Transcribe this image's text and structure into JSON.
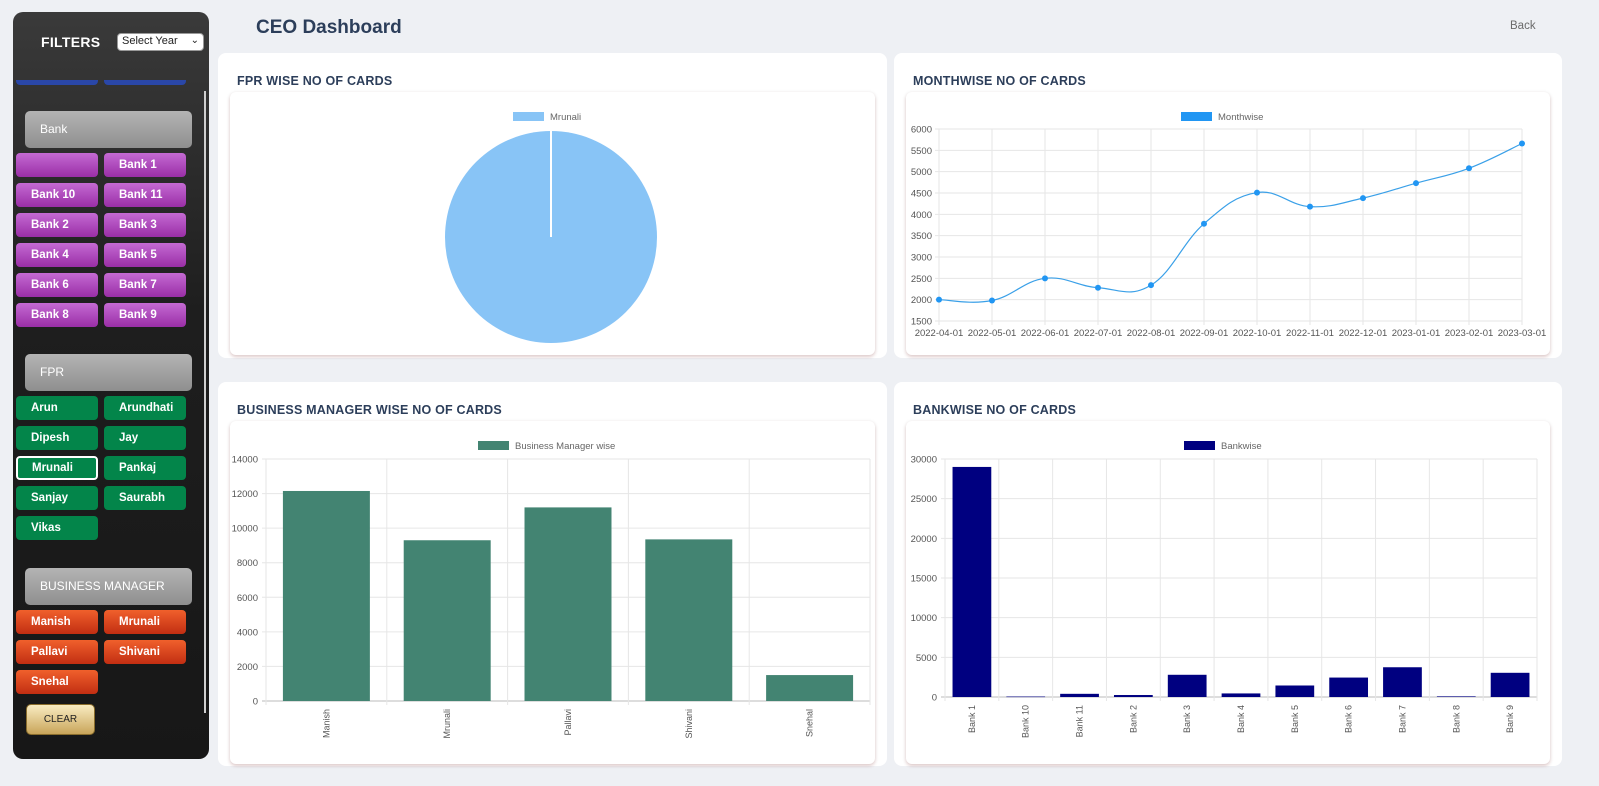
{
  "sidebar": {
    "title": "FILTERS",
    "year_select": {
      "value": "Select Year"
    },
    "bank_section": {
      "label": "Bank",
      "items": [
        {
          "label": ""
        },
        {
          "label": "Bank 1"
        },
        {
          "label": "Bank 10"
        },
        {
          "label": "Bank 11"
        },
        {
          "label": "Bank 2"
        },
        {
          "label": "Bank 3"
        },
        {
          "label": "Bank 4"
        },
        {
          "label": "Bank 5"
        },
        {
          "label": "Bank 6"
        },
        {
          "label": "Bank 7"
        },
        {
          "label": "Bank 8"
        },
        {
          "label": "Bank 9"
        }
      ]
    },
    "fpr_section": {
      "label": "FPR",
      "items": [
        {
          "label": "Arun"
        },
        {
          "label": "Arundhati"
        },
        {
          "label": "Dipesh"
        },
        {
          "label": "Jay"
        },
        {
          "label": "Mrunali",
          "selected": true
        },
        {
          "label": "Pankaj"
        },
        {
          "label": "Sanjay"
        },
        {
          "label": "Saurabh"
        },
        {
          "label": "Vikas"
        }
      ]
    },
    "bm_section": {
      "label": "BUSINESS MANAGER",
      "items": [
        {
          "label": "Manish"
        },
        {
          "label": "Mrunali"
        },
        {
          "label": "Pallavi"
        },
        {
          "label": "Shivani"
        },
        {
          "label": "Snehal"
        }
      ]
    },
    "clear_label": "CLEAR"
  },
  "header": {
    "title": "CEO Dashboard",
    "back_label": "Back"
  },
  "colors": {
    "pie": "#88c4f6",
    "line": "#3aa0e8",
    "bm_bar": "#438472",
    "bank_bar": "#000080"
  },
  "cards": {
    "fpr": {
      "title": "FPR WISE NO OF CARDS"
    },
    "monthwise": {
      "title": "MONTHWISE NO OF CARDS"
    },
    "bm": {
      "title": "BUSINESS MANAGER WISE NO OF CARDS"
    },
    "bankwise": {
      "title": "BANKWISE NO OF CARDS"
    }
  },
  "chart_data": [
    {
      "type": "pie",
      "title": "",
      "legend": "Mrunali",
      "categories": [
        "Mrunali"
      ],
      "values": [
        100
      ]
    },
    {
      "type": "line",
      "title": "",
      "legend": "Monthwise",
      "x": [
        "2022-04-01",
        "2022-05-01",
        "2022-06-01",
        "2022-07-01",
        "2022-08-01",
        "2022-09-01",
        "2022-10-01",
        "2022-11-01",
        "2022-12-01",
        "2023-01-01",
        "2023-02-01",
        "2023-03-01"
      ],
      "series": [
        {
          "name": "Monthwise",
          "values": [
            2000,
            1980,
            2500,
            2280,
            2340,
            3780,
            4510,
            4180,
            4380,
            4730,
            5080,
            5660
          ]
        }
      ],
      "ylim": [
        1500,
        6000
      ],
      "yticks": [
        1500,
        2000,
        2500,
        3000,
        3500,
        4000,
        4500,
        5000,
        5500,
        6000
      ],
      "grid": true
    },
    {
      "type": "bar",
      "title": "",
      "legend": "Business Manager wise",
      "categories": [
        "Manish",
        "Mrunali",
        "Pallavi",
        "Shivani",
        "Snehal"
      ],
      "values": [
        12150,
        9300,
        11200,
        9350,
        1500
      ],
      "ylim": [
        0,
        14000
      ],
      "yticks": [
        0,
        2000,
        4000,
        6000,
        8000,
        10000,
        12000,
        14000
      ],
      "grid": true
    },
    {
      "type": "bar",
      "title": "",
      "legend": "Bankwise",
      "categories": [
        "Bank 1",
        "Bank 10",
        "Bank 11",
        "Bank 2",
        "Bank 3",
        "Bank 4",
        "Bank 5",
        "Bank 6",
        "Bank 7",
        "Bank 8",
        "Bank 9"
      ],
      "values": [
        29000,
        60,
        400,
        250,
        2800,
        450,
        1450,
        2450,
        3750,
        80,
        3050
      ],
      "ylim": [
        0,
        30000
      ],
      "yticks": [
        0,
        5000,
        10000,
        15000,
        20000,
        25000,
        30000
      ],
      "grid": true
    }
  ]
}
